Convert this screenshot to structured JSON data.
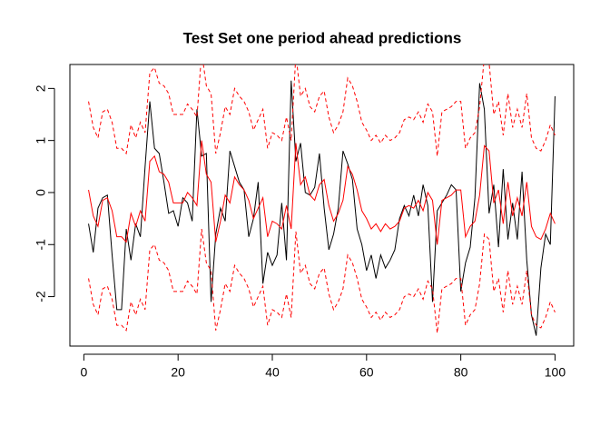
{
  "chart_data": {
    "type": "line",
    "title": "Test Set one period ahead predictions",
    "x": [
      1,
      2,
      3,
      4,
      5,
      6,
      7,
      8,
      9,
      10,
      11,
      12,
      13,
      14,
      15,
      16,
      17,
      18,
      19,
      20,
      21,
      22,
      23,
      24,
      25,
      26,
      27,
      28,
      29,
      30,
      31,
      32,
      33,
      34,
      35,
      36,
      37,
      38,
      39,
      40,
      41,
      42,
      43,
      44,
      45,
      46,
      47,
      48,
      49,
      50,
      51,
      52,
      53,
      54,
      55,
      56,
      57,
      58,
      59,
      60,
      61,
      62,
      63,
      64,
      65,
      66,
      67,
      68,
      69,
      70,
      71,
      72,
      73,
      74,
      75,
      76,
      77,
      78,
      79,
      80,
      81,
      82,
      83,
      84,
      85,
      86,
      87,
      88,
      89,
      90,
      91,
      92,
      93,
      94,
      95,
      96,
      97,
      98,
      99,
      100
    ],
    "xlim": [
      -2.96,
      103.96
    ],
    "ylim": [
      -2.95,
      2.46
    ],
    "xticks": [
      0,
      20,
      40,
      60,
      80,
      100
    ],
    "yticks": [
      -2,
      -1,
      0,
      1,
      2
    ],
    "series": [
      {
        "color": "#000000",
        "dash": false,
        "values": [
          -0.6,
          -1.15,
          -0.3,
          -0.1,
          -0.05,
          -1.2,
          -2.25,
          -2.25,
          -0.7,
          -1.3,
          -0.6,
          -0.85,
          0.5,
          1.75,
          0.85,
          0.75,
          0.2,
          -0.4,
          -0.35,
          -0.65,
          -0.1,
          -0.2,
          -0.55,
          1.6,
          0.7,
          0.75,
          -2.1,
          -0.8,
          -0.3,
          -0.55,
          0.8,
          0.5,
          0.2,
          0.05,
          -0.85,
          -0.5,
          0.2,
          -1.75,
          -1.15,
          -1.4,
          -1.2,
          -0.2,
          -1.3,
          2.15,
          0.6,
          0.95,
          0,
          -0.05,
          0.1,
          0.75,
          -0.3,
          -1.1,
          -0.8,
          -0.3,
          0.8,
          0.55,
          0.25,
          -0.7,
          -1.0,
          -1.5,
          -1.2,
          -1.65,
          -1.2,
          -1.45,
          -1.3,
          -1.1,
          -0.5,
          -0.25,
          -0.45,
          -0.05,
          -0.45,
          0.15,
          -0.25,
          -2.1,
          -0.35,
          -0.2,
          -0.05,
          0.15,
          0.05,
          -1.9,
          -1.35,
          -1.05,
          -0.1,
          2.1,
          1.6,
          -0.4,
          0.15,
          -1.05,
          0.45,
          -0.9,
          -0.2,
          -0.9,
          0.4,
          -1.3,
          -2.35,
          -2.75,
          -1.45,
          -0.8,
          -1.0,
          1.85
        ]
      },
      {
        "color": "#ff0000",
        "dash": false,
        "values": [
          0.05,
          -0.45,
          -0.65,
          -0.15,
          -0.1,
          -0.35,
          -0.85,
          -0.85,
          -0.95,
          -0.4,
          -0.65,
          -0.35,
          -0.55,
          0.6,
          0.7,
          0.4,
          0.35,
          0.2,
          -0.2,
          -0.2,
          -0.2,
          0,
          -0.1,
          -0.25,
          1.0,
          0.35,
          0.2,
          -0.95,
          -0.55,
          -0.05,
          -0.2,
          0.3,
          0.15,
          0.05,
          -0.15,
          -0.5,
          -0.3,
          -0.1,
          -0.85,
          -0.55,
          -0.6,
          -0.7,
          -0.25,
          -0.7,
          0.95,
          0.15,
          0.3,
          -0.05,
          -0.15,
          0.15,
          0.25,
          -0.25,
          -0.55,
          -0.4,
          -0.15,
          0.5,
          0.35,
          0.05,
          -0.35,
          -0.5,
          -0.7,
          -0.6,
          -0.75,
          -0.6,
          -0.7,
          -0.65,
          -0.55,
          -0.3,
          -0.25,
          -0.3,
          -0.15,
          -0.35,
          0,
          -0.15,
          -1.0,
          -0.15,
          -0.1,
          -0.05,
          0.05,
          0.05,
          -0.85,
          -0.65,
          -0.55,
          -0.05,
          0.9,
          0.8,
          -0.2,
          0.05,
          -0.6,
          0.2,
          -0.45,
          -0.1,
          -0.45,
          0.2,
          -0.65,
          -0.85,
          -0.9,
          -0.7,
          -0.4,
          -0.6
        ]
      },
      {
        "color": "#ff0000",
        "dash": true,
        "values": [
          1.75,
          1.25,
          1.05,
          1.55,
          1.6,
          1.35,
          0.85,
          0.85,
          0.75,
          1.3,
          1.05,
          1.35,
          1.15,
          2.3,
          2.4,
          2.1,
          2.05,
          1.9,
          1.5,
          1.5,
          1.5,
          1.7,
          1.6,
          1.45,
          2.7,
          2.05,
          1.9,
          0.75,
          1.15,
          1.65,
          1.5,
          2.0,
          1.85,
          1.75,
          1.55,
          1.2,
          1.4,
          1.6,
          0.85,
          1.15,
          1.1,
          1.0,
          1.45,
          1.0,
          2.65,
          1.85,
          2.0,
          1.65,
          1.55,
          1.85,
          1.95,
          1.45,
          1.15,
          1.3,
          1.55,
          2.2,
          2.05,
          1.75,
          1.35,
          1.2,
          1.0,
          1.1,
          0.95,
          1.1,
          1.0,
          1.05,
          1.15,
          1.4,
          1.45,
          1.4,
          1.55,
          1.35,
          1.7,
          1.55,
          0.7,
          1.55,
          1.6,
          1.65,
          1.75,
          1.75,
          0.85,
          1.05,
          1.15,
          1.65,
          2.6,
          2.5,
          1.5,
          1.75,
          1.1,
          1.9,
          1.25,
          1.6,
          1.25,
          1.9,
          1.05,
          0.85,
          0.8,
          1.0,
          1.3,
          1.1
        ]
      },
      {
        "color": "#ff0000",
        "dash": true,
        "values": [
          -1.65,
          -2.15,
          -2.35,
          -1.85,
          -1.8,
          -2.05,
          -2.55,
          -2.55,
          -2.65,
          -2.1,
          -2.35,
          -2.05,
          -2.25,
          -1.1,
          -1.0,
          -1.3,
          -1.35,
          -1.5,
          -1.9,
          -1.9,
          -1.9,
          -1.7,
          -1.8,
          -1.95,
          -0.7,
          -1.35,
          -1.5,
          -2.65,
          -2.25,
          -1.75,
          -1.9,
          -1.4,
          -1.55,
          -1.65,
          -1.85,
          -2.2,
          -2.0,
          -1.8,
          -2.55,
          -2.25,
          -2.3,
          -2.4,
          -1.95,
          -2.4,
          -0.75,
          -1.55,
          -1.4,
          -1.75,
          -1.85,
          -1.55,
          -1.45,
          -1.95,
          -2.25,
          -2.1,
          -1.85,
          -1.2,
          -1.35,
          -1.65,
          -2.05,
          -2.2,
          -2.4,
          -2.3,
          -2.45,
          -2.3,
          -2.4,
          -2.35,
          -2.25,
          -2.0,
          -1.95,
          -2.0,
          -1.85,
          -2.05,
          -1.7,
          -1.85,
          -2.7,
          -1.85,
          -1.8,
          -1.75,
          -1.65,
          -1.65,
          -2.55,
          -2.35,
          -2.25,
          -1.75,
          -0.8,
          -0.9,
          -1.9,
          -1.65,
          -2.3,
          -1.5,
          -2.15,
          -1.8,
          -2.15,
          -1.5,
          -2.35,
          -2.55,
          -2.6,
          -2.4,
          -2.1,
          -2.3
        ]
      }
    ]
  }
}
